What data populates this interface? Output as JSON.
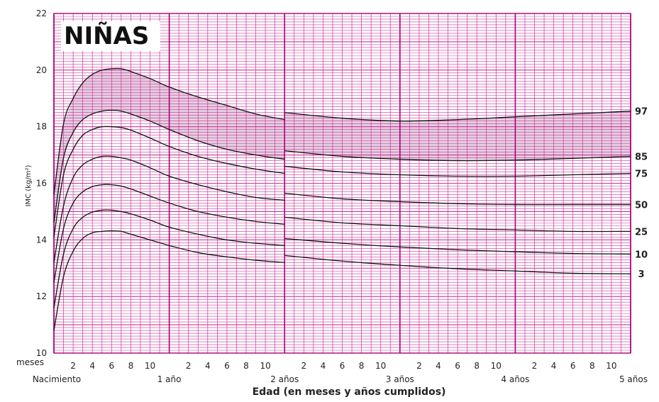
{
  "chart_data": {
    "type": "line",
    "title": "NIÑAS",
    "xlabel": "Edad (en meses y años cumplidos)",
    "ylabel": "IMC (kg/m²)",
    "xlim": [
      0,
      60
    ],
    "ylim": [
      10,
      22
    ],
    "y_ticks": [
      10,
      12,
      14,
      16,
      18,
      20,
      22
    ],
    "x_row_label": "meses",
    "x_month_ticks": [
      {
        "month": 2,
        "label": "2"
      },
      {
        "month": 4,
        "label": "4"
      },
      {
        "month": 6,
        "label": "6"
      },
      {
        "month": 8,
        "label": "8"
      },
      {
        "month": 10,
        "label": "10"
      },
      {
        "month": 14,
        "label": "2"
      },
      {
        "month": 16,
        "label": "4"
      },
      {
        "month": 18,
        "label": "6"
      },
      {
        "month": 20,
        "label": "8"
      },
      {
        "month": 22,
        "label": "10"
      },
      {
        "month": 26,
        "label": "2"
      },
      {
        "month": 28,
        "label": "4"
      },
      {
        "month": 30,
        "label": "6"
      },
      {
        "month": 32,
        "label": "8"
      },
      {
        "month": 34,
        "label": "10"
      },
      {
        "month": 38,
        "label": "2"
      },
      {
        "month": 40,
        "label": "4"
      },
      {
        "month": 42,
        "label": "6"
      },
      {
        "month": 44,
        "label": "8"
      },
      {
        "month": 46,
        "label": "10"
      },
      {
        "month": 50,
        "label": "2"
      },
      {
        "month": 52,
        "label": "4"
      },
      {
        "month": 54,
        "label": "6"
      },
      {
        "month": 56,
        "label": "8"
      },
      {
        "month": 58,
        "label": "10"
      }
    ],
    "x_year_ticks": [
      {
        "month": 0,
        "label": "Nacimiento"
      },
      {
        "month": 12,
        "label": "1 año"
      },
      {
        "month": 24,
        "label": "2 años"
      },
      {
        "month": 36,
        "label": "3 años"
      },
      {
        "month": 48,
        "label": "4 años"
      },
      {
        "month": 60,
        "label": "5 años"
      }
    ],
    "shaded_band": {
      "between": [
        "85",
        "97"
      ],
      "color": "#e3cfe0"
    },
    "grid": true,
    "colors": {
      "minor_grid": "#cc3399",
      "major_grid": "#aa0077",
      "curve": "#111111",
      "shade": "#e3cfe0"
    },
    "series": [
      {
        "name": "97",
        "segments": [
          [
            [
              0,
              15.6
            ],
            [
              1,
              18.1
            ],
            [
              2,
              19.0
            ],
            [
              3,
              19.55
            ],
            [
              4,
              19.85
            ],
            [
              5,
              20.0
            ],
            [
              6,
              20.05
            ],
            [
              7,
              20.05
            ],
            [
              8,
              19.95
            ],
            [
              10,
              19.7
            ],
            [
              12,
              19.4
            ],
            [
              15,
              19.05
            ],
            [
              18,
              18.75
            ],
            [
              21,
              18.45
            ],
            [
              24,
              18.25
            ]
          ],
          [
            [
              24,
              18.5
            ],
            [
              30,
              18.3
            ],
            [
              36,
              18.2
            ],
            [
              42,
              18.25
            ],
            [
              48,
              18.35
            ],
            [
              54,
              18.45
            ],
            [
              60,
              18.55
            ]
          ]
        ]
      },
      {
        "name": "85",
        "segments": [
          [
            [
              0,
              14.6
            ],
            [
              1,
              16.9
            ],
            [
              2,
              17.8
            ],
            [
              3,
              18.25
            ],
            [
              4,
              18.45
            ],
            [
              5,
              18.55
            ],
            [
              6,
              18.58
            ],
            [
              7,
              18.55
            ],
            [
              8,
              18.45
            ],
            [
              10,
              18.2
            ],
            [
              12,
              17.9
            ],
            [
              15,
              17.5
            ],
            [
              18,
              17.2
            ],
            [
              21,
              17.0
            ],
            [
              24,
              16.85
            ]
          ],
          [
            [
              24,
              17.15
            ],
            [
              30,
              16.95
            ],
            [
              36,
              16.85
            ],
            [
              42,
              16.8
            ],
            [
              48,
              16.82
            ],
            [
              54,
              16.88
            ],
            [
              60,
              16.95
            ]
          ]
        ]
      },
      {
        "name": "75",
        "segments": [
          [
            [
              0,
              14.1
            ],
            [
              1,
              16.3
            ],
            [
              2,
              17.2
            ],
            [
              3,
              17.7
            ],
            [
              4,
              17.9
            ],
            [
              5,
              18.0
            ],
            [
              6,
              18.0
            ],
            [
              7,
              17.97
            ],
            [
              8,
              17.88
            ],
            [
              10,
              17.6
            ],
            [
              12,
              17.3
            ],
            [
              15,
              16.95
            ],
            [
              18,
              16.7
            ],
            [
              21,
              16.5
            ],
            [
              24,
              16.35
            ]
          ],
          [
            [
              24,
              16.6
            ],
            [
              30,
              16.4
            ],
            [
              36,
              16.3
            ],
            [
              42,
              16.25
            ],
            [
              48,
              16.25
            ],
            [
              54,
              16.3
            ],
            [
              60,
              16.35
            ]
          ]
        ]
      },
      {
        "name": "50",
        "segments": [
          [
            [
              0,
              13.2
            ],
            [
              1,
              15.2
            ],
            [
              2,
              16.2
            ],
            [
              3,
              16.65
            ],
            [
              4,
              16.85
            ],
            [
              5,
              16.95
            ],
            [
              6,
              16.95
            ],
            [
              7,
              16.9
            ],
            [
              8,
              16.82
            ],
            [
              10,
              16.55
            ],
            [
              12,
              16.25
            ],
            [
              15,
              15.95
            ],
            [
              18,
              15.7
            ],
            [
              21,
              15.5
            ],
            [
              24,
              15.4
            ]
          ],
          [
            [
              24,
              15.65
            ],
            [
              30,
              15.45
            ],
            [
              36,
              15.35
            ],
            [
              42,
              15.28
            ],
            [
              48,
              15.25
            ],
            [
              54,
              15.25
            ],
            [
              60,
              15.25
            ]
          ]
        ]
      },
      {
        "name": "25",
        "segments": [
          [
            [
              0,
              12.5
            ],
            [
              1,
              14.4
            ],
            [
              2,
              15.3
            ],
            [
              3,
              15.7
            ],
            [
              4,
              15.88
            ],
            [
              5,
              15.95
            ],
            [
              6,
              15.95
            ],
            [
              7,
              15.9
            ],
            [
              8,
              15.8
            ],
            [
              10,
              15.55
            ],
            [
              12,
              15.3
            ],
            [
              15,
              15.0
            ],
            [
              18,
              14.8
            ],
            [
              21,
              14.65
            ],
            [
              24,
              14.55
            ]
          ],
          [
            [
              24,
              14.8
            ],
            [
              30,
              14.6
            ],
            [
              36,
              14.5
            ],
            [
              42,
              14.4
            ],
            [
              48,
              14.35
            ],
            [
              54,
              14.3
            ],
            [
              60,
              14.3
            ]
          ]
        ]
      },
      {
        "name": "10",
        "segments": [
          [
            [
              0,
              11.6
            ],
            [
              1,
              13.5
            ],
            [
              2,
              14.4
            ],
            [
              3,
              14.8
            ],
            [
              4,
              14.98
            ],
            [
              5,
              15.05
            ],
            [
              6,
              15.05
            ],
            [
              7,
              15.0
            ],
            [
              8,
              14.92
            ],
            [
              10,
              14.7
            ],
            [
              12,
              14.45
            ],
            [
              15,
              14.2
            ],
            [
              18,
              14.0
            ],
            [
              21,
              13.88
            ],
            [
              24,
              13.8
            ]
          ],
          [
            [
              24,
              14.05
            ],
            [
              30,
              13.88
            ],
            [
              36,
              13.75
            ],
            [
              42,
              13.65
            ],
            [
              48,
              13.58
            ],
            [
              54,
              13.52
            ],
            [
              60,
              13.5
            ]
          ]
        ]
      },
      {
        "name": "3",
        "segments": [
          [
            [
              0,
              10.8
            ],
            [
              1,
              12.7
            ],
            [
              2,
              13.6
            ],
            [
              3,
              14.05
            ],
            [
              4,
              14.25
            ],
            [
              5,
              14.3
            ],
            [
              6,
              14.32
            ],
            [
              7,
              14.3
            ],
            [
              8,
              14.2
            ],
            [
              10,
              14.0
            ],
            [
              12,
              13.8
            ],
            [
              15,
              13.55
            ],
            [
              18,
              13.4
            ],
            [
              21,
              13.28
            ],
            [
              24,
              13.2
            ]
          ],
          [
            [
              24,
              13.45
            ],
            [
              30,
              13.25
            ],
            [
              36,
              13.1
            ],
            [
              42,
              12.98
            ],
            [
              48,
              12.9
            ],
            [
              54,
              12.82
            ],
            [
              60,
              12.8
            ]
          ]
        ]
      }
    ]
  }
}
